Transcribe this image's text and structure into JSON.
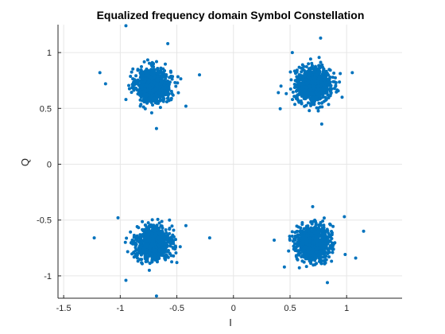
{
  "chart_data": {
    "type": "scatter",
    "title": "Equalized frequency domain Symbol Constellation",
    "xlabel": "I",
    "ylabel": "Q",
    "xlim": [
      -1.55,
      1.49
    ],
    "ylim": [
      -1.2,
      1.25
    ],
    "xticks": [
      -1.5,
      -1,
      -0.5,
      0,
      0.5,
      1
    ],
    "xtick_labels": [
      "-1.5",
      "-1",
      "-0.5",
      "0",
      "0.5",
      "1"
    ],
    "yticks": [
      -1,
      -0.5,
      0,
      0.5,
      1
    ],
    "ytick_labels": [
      "-1",
      "-0.5",
      "0",
      "0.5",
      "1"
    ],
    "grid": true,
    "marker_color": "#0072BD",
    "series": [
      {
        "clusters": [
          {
            "center": [
              -0.707,
              0.707
            ],
            "spread": 0.075,
            "count": 900
          },
          {
            "center": [
              0.707,
              0.707
            ],
            "spread": 0.075,
            "count": 900
          },
          {
            "center": [
              -0.707,
              -0.707
            ],
            "spread": 0.075,
            "count": 900
          },
          {
            "center": [
              0.707,
              -0.707
            ],
            "spread": 0.075,
            "count": 900
          }
        ],
        "outliers": [
          [
            -0.95,
            1.24
          ],
          [
            -0.68,
            0.32
          ],
          [
            -1.18,
            0.82
          ],
          [
            -1.13,
            0.72
          ],
          [
            -0.95,
            0.58
          ],
          [
            -0.3,
            0.8
          ],
          [
            -0.58,
            1.08
          ],
          [
            -0.42,
            0.52
          ],
          [
            0.77,
            1.13
          ],
          [
            0.42,
            0.7
          ],
          [
            1.05,
            0.82
          ],
          [
            0.96,
            0.6
          ],
          [
            0.78,
            0.36
          ],
          [
            0.52,
            1.0
          ],
          [
            -1.23,
            -0.66
          ],
          [
            -0.95,
            -1.04
          ],
          [
            -0.68,
            -1.18
          ],
          [
            -0.21,
            -0.66
          ],
          [
            -0.5,
            -0.88
          ],
          [
            -1.02,
            -0.48
          ],
          [
            -0.42,
            -0.55
          ],
          [
            1.15,
            -0.6
          ],
          [
            1.08,
            -0.84
          ],
          [
            0.36,
            -0.68
          ],
          [
            0.7,
            -0.38
          ],
          [
            0.83,
            -1.06
          ],
          [
            0.45,
            -0.92
          ],
          [
            0.98,
            -0.47
          ]
        ]
      }
    ]
  }
}
